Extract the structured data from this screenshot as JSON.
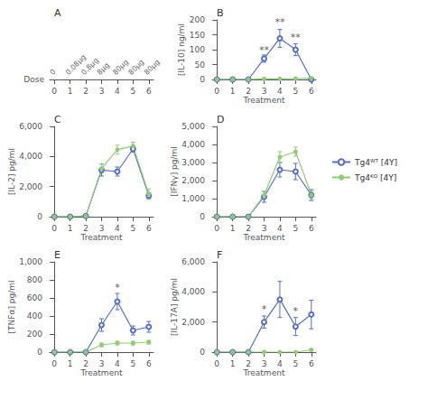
{
  "chart_data": [
    {
      "type": "dose_axis",
      "title": "A",
      "xlabel": "Dose",
      "categories": [
        "0",
        "0.08μg",
        "0.8μg",
        "8μg",
        "80μg",
        "80μg",
        "80μg"
      ],
      "xlim": [
        -0.3,
        6.3
      ],
      "xticks": [
        0,
        1,
        2,
        3,
        4,
        5,
        6
      ]
    },
    {
      "type": "line",
      "title": "B",
      "xlabel": "Treatment",
      "ylabel": "[IL-10] ng/ml",
      "x": [
        0,
        1,
        2,
        3,
        4,
        5,
        6
      ],
      "xlim": [
        -0.3,
        6.3
      ],
      "xticks": [
        0,
        1,
        2,
        3,
        4,
        5,
        6
      ],
      "ylim": [
        0,
        200
      ],
      "yticks": [
        0,
        50,
        100,
        150,
        200
      ],
      "grid": false,
      "series": [
        {
          "name": "Tg4ᵂᵀ [4Y]",
          "color": "#5470c6",
          "marker": "emptyCircle",
          "values": [
            0,
            0,
            0,
            70,
            138,
            100,
            0
          ],
          "errors": [
            0,
            0,
            0,
            12,
            30,
            20,
            0
          ]
        },
        {
          "name": "Tg4ᴷᴼ [4Y]",
          "color": "#91cc75",
          "marker": "circle",
          "values": [
            0,
            0,
            0,
            2,
            2,
            3,
            4
          ],
          "errors": [
            0,
            0,
            0,
            0.5,
            0.5,
            0.5,
            0.5
          ]
        }
      ],
      "annotations": [
        {
          "x": 3,
          "y": 82,
          "text": "**"
        },
        {
          "x": 4,
          "y": 175,
          "text": "**"
        },
        {
          "x": 5,
          "y": 125,
          "text": "**"
        }
      ]
    },
    {
      "type": "line",
      "title": "C",
      "xlabel": "Treatment",
      "ylabel": "[IL-2] pg/ml",
      "x": [
        0,
        1,
        2,
        3,
        4,
        5,
        6
      ],
      "xlim": [
        -0.3,
        6.3
      ],
      "xticks": [
        0,
        1,
        2,
        3,
        4,
        5,
        6
      ],
      "ylim": [
        0,
        6000
      ],
      "yticks": [
        0,
        2000,
        4000,
        6000
      ],
      "grid": false,
      "series": [
        {
          "name": "Tg4ᵂᵀ [4Y]",
          "color": "#5470c6",
          "marker": "emptyCircle",
          "values": [
            0,
            0,
            50,
            3100,
            3000,
            4500,
            1400
          ],
          "errors": [
            0,
            0,
            0,
            400,
            300,
            200,
            200
          ]
        },
        {
          "name": "Tg4ᴷᴼ [4Y]",
          "color": "#91cc75",
          "marker": "circle",
          "values": [
            0,
            0,
            50,
            3200,
            4450,
            4700,
            1500
          ],
          "errors": [
            0,
            0,
            0,
            300,
            300,
            250,
            350
          ]
        }
      ]
    },
    {
      "type": "line",
      "title": "D",
      "xlabel": "Treatment",
      "ylabel": "[IFNγ] pg/ml",
      "x": [
        0,
        1,
        2,
        3,
        4,
        5,
        6
      ],
      "xlim": [
        -0.3,
        6.3
      ],
      "xticks": [
        0,
        1,
        2,
        3,
        4,
        5,
        6
      ],
      "ylim": [
        0,
        5000
      ],
      "yticks": [
        0,
        1000,
        2000,
        3000,
        4000,
        5000
      ],
      "grid": false,
      "legend": "right",
      "series": [
        {
          "name": "Tg4ᵂᵀ [4Y]",
          "color": "#5470c6",
          "marker": "emptyCircle",
          "values": [
            0,
            0,
            0,
            1100,
            2600,
            2500,
            1200
          ],
          "errors": [
            0,
            0,
            0,
            300,
            400,
            450,
            300
          ]
        },
        {
          "name": "Tg4ᴷᴼ [4Y]",
          "color": "#91cc75",
          "marker": "circle",
          "values": [
            0,
            0,
            0,
            1200,
            3300,
            3600,
            1200
          ],
          "errors": [
            0,
            0,
            0,
            200,
            300,
            250,
            200
          ]
        }
      ]
    },
    {
      "type": "line",
      "title": "E",
      "xlabel": "Treatment",
      "ylabel": "[TNFα] pg/ml",
      "x": [
        0,
        1,
        2,
        3,
        4,
        5,
        6
      ],
      "xlim": [
        -0.3,
        6.3
      ],
      "xticks": [
        0,
        1,
        2,
        3,
        4,
        5,
        6
      ],
      "ylim": [
        0,
        1000
      ],
      "yticks": [
        0,
        200,
        400,
        600,
        800,
        1000
      ],
      "grid": false,
      "series": [
        {
          "name": "Tg4ᵂᵀ [4Y]",
          "color": "#5470c6",
          "marker": "emptyCircle",
          "values": [
            0,
            0,
            0,
            300,
            560,
            240,
            280
          ],
          "errors": [
            0,
            0,
            0,
            70,
            90,
            50,
            60
          ]
        },
        {
          "name": "Tg4ᴷᴼ [4Y]",
          "color": "#91cc75",
          "marker": "circle",
          "values": [
            0,
            0,
            0,
            80,
            100,
            100,
            110
          ],
          "errors": [
            0,
            0,
            0,
            20,
            20,
            20,
            20
          ]
        }
      ],
      "annotations": [
        {
          "x": 4,
          "y": 665,
          "text": "*"
        }
      ]
    },
    {
      "type": "line",
      "title": "F",
      "xlabel": "Treatment",
      "ylabel": "[IL-17A] pg/ml",
      "x": [
        0,
        1,
        2,
        3,
        4,
        5,
        6
      ],
      "xlim": [
        -0.3,
        6.3
      ],
      "xticks": [
        0,
        1,
        2,
        3,
        4,
        5,
        6
      ],
      "ylim": [
        0,
        6000
      ],
      "yticks": [
        0,
        2000,
        4000,
        6000
      ],
      "grid": false,
      "series": [
        {
          "name": "Tg4ᵂᵀ [4Y]",
          "color": "#5470c6",
          "marker": "emptyCircle",
          "values": [
            0,
            0,
            0,
            2000,
            3500,
            1700,
            2500
          ],
          "errors": [
            0,
            0,
            0,
            400,
            1200,
            600,
            950
          ]
        },
        {
          "name": "Tg4ᴷᴼ [4Y]",
          "color": "#91cc75",
          "marker": "circle",
          "values": [
            0,
            0,
            0,
            0,
            0,
            0,
            150
          ],
          "errors": [
            0,
            0,
            0,
            0,
            0,
            0,
            50
          ]
        }
      ],
      "annotations": [
        {
          "x": 3,
          "y": 2500,
          "text": "*"
        },
        {
          "x": 5,
          "y": 2400,
          "text": "*"
        }
      ]
    }
  ]
}
